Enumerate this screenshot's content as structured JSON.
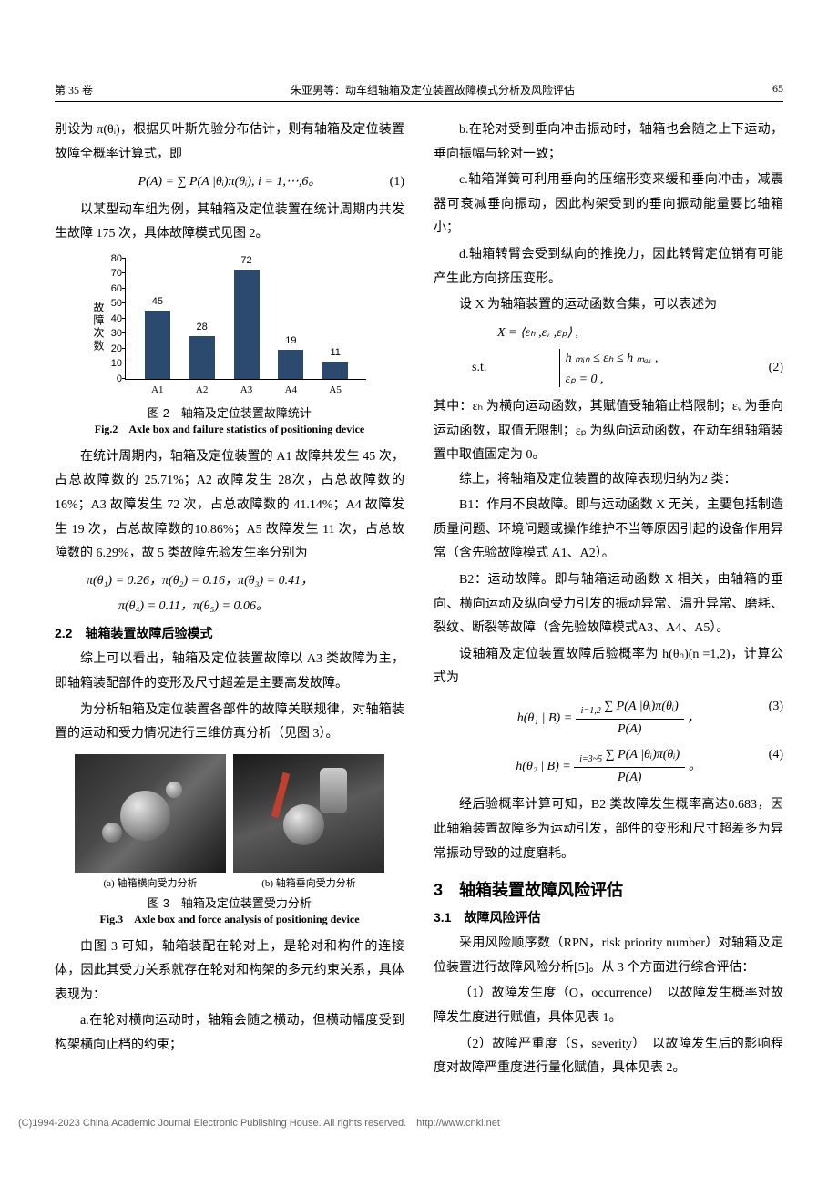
{
  "header": {
    "volume": "第 35 卷",
    "title": "朱亚男等：动车组轴箱及定位装置故障模式分析及风险评估",
    "page": "65"
  },
  "left_col": {
    "p1": "别设为 π(θᵢ)，根据贝叶斯先验分布估计，则有轴箱及定位装置故障全概率计算式，即",
    "eq1": "P(A) = ∑ P(A |θᵢ)π(θᵢ), i = 1,⋯,6。",
    "eq1_num": "(1)",
    "p2": "以某型动车组为例，其轴箱及定位装置在统计周期内共发生故障 175 次，具体故障模式见图 2。",
    "chart": {
      "categories": [
        "A1",
        "A2",
        "A3",
        "A4",
        "A5"
      ],
      "values": [
        45,
        28,
        72,
        19,
        11
      ],
      "bar_color": "#2b4a6e",
      "ylim_max": 80,
      "ytick_step": 10,
      "y_axis_label": "故障次数"
    },
    "fig2_cn": "图 2　轴箱及定位装置故障统计",
    "fig2_en": "Fig.2　Axle box and failure statistics of positioning device",
    "p3": "在统计周期内，轴箱及定位装置的 A1 故障共发生 45 次，占总故障数的 25.71%；A2 故障发生 28次，占总故障数的 16%；A3 故障发生 72 次，占总故障数的 41.14%；A4 故障发生 19 次，占总故障数的10.86%；A5 故障发生 11 次，占总故障数的 6.29%，故 5 类故障先验发生率分别为",
    "eq_prior1": "π(θ₁) = 0.26，π(θ₂) = 0.16，π(θ₃) = 0.41，",
    "eq_prior2": "π(θ₄) = 0.11，π(θ₅) = 0.06。",
    "sub22": "2.2　轴箱装置故障后验模式",
    "p4": "综上可以看出，轴箱及定位装置故障以 A3 类故障为主，即轴箱装配部件的变形及尺寸超差是主要高发故障。",
    "p5": "为分析轴箱及定位装置各部件的故障关联规律，对轴箱装置的运动和受力情况进行三维仿真分析（见图 3）。",
    "fig3_sub_a": "(a) 轴箱横向受力分析",
    "fig3_sub_b": "(b) 轴箱垂向受力分析",
    "fig3_cn": "图 3　轴箱及定位装置受力分析",
    "fig3_en": "Fig.3　Axle box and force analysis of positioning device",
    "p6": "由图 3 可知，轴箱装配在轮对上，是轮对和构件的连接体，因此其受力关系就存在轮对和构架的多元约束关系，具体表现为：",
    "p7": "a.在轮对横向运动时，轴箱会随之横动，但横动幅度受到构架横向止档的约束；"
  },
  "right_col": {
    "p_b": "b.在轮对受到垂向冲击振动时，轴箱也会随之上下运动，垂向振幅与轮对一致；",
    "p_c": "c.轴箱弹簧可利用垂向的压缩形变来缓和垂向冲击，减震器可衰减垂向振动，因此构架受到的垂向振动能量要比轴箱小；",
    "p_d": "d.轴箱转臂会受到纵向的推挽力，因此转臂定位销有可能产生此方向挤压变形。",
    "p_x": "设 X 为轴箱装置的运动函数合集，可以表述为",
    "eq2_l1": "X = ⟨εₕ ,εᵥ ,εₚ⟩ ,",
    "eq2_l2_pre": "s.t.",
    "eq2_l2a": "h ₘᵢₙ ≤ εₕ ≤ h ₘₐₓ ,",
    "eq2_l2b": "εₚ = 0 ,",
    "eq2_num": "(2)",
    "p_where": "其中：εₕ 为横向运动函数，其赋值受轴箱止档限制；εᵥ 为垂向运动函数，取值无限制；εₚ 为纵向运动函数，在动车组轴箱装置中取值固定为 0。",
    "p_sum": "综上，将轴箱及定位装置的故障表现归纳为2 类：",
    "p_b1": "B1：作用不良故障。即与运动函数 X 无关，主要包括制造质量问题、环境问题或操作维护不当等原因引起的设备作用异常（含先验故障模式 A1、A2）。",
    "p_b2": "B2：运动故障。即与轴箱运动函数 X 相关，由轴箱的垂向、横向运动及纵向受力引发的振动异常、温升异常、磨耗、裂纹、断裂等故障（含先验故障模式A3、A4、A5）。",
    "p_post": "设轴箱及定位装置故障后验概率为 h(θₙ)(n =1,2)，计算公式为",
    "eq3_lhs": "h(θ₁ | B) =",
    "eq3_num_top": "∑ P(A |θᵢ)π(θᵢ)",
    "eq3_num_sub": "i=1,2",
    "eq3_den": "P(A)",
    "eq3_comma": "，",
    "eq3_num": "(3)",
    "eq4_lhs": "h(θ₂ | B) =",
    "eq4_num_top": "∑ P(A |θᵢ)π(θᵢ)",
    "eq4_num_sub": "i=3~5",
    "eq4_den": "P(A)",
    "eq4_period": "。",
    "eq4_num": "(4)",
    "p_result": "经后验概率计算可知，B2 类故障发生概率高达0.683，因此轴箱装置故障多为运动引发，部件的变形和尺寸超差多为异常振动导致的过度磨耗。",
    "sec3": "3　轴箱装置故障风险评估",
    "sub31": "3.1　故障风险评估",
    "p_rpn": "采用风险顺序数（RPN，risk priority number）对轴箱及定位装置进行故障风险分析[5]。从 3 个方面进行综合评估：",
    "p_o": "（1）故障发生度（O，occurrence）　以故障发生概率对故障发生度进行赋值，具体见表 1。",
    "p_s": "（2）故障严重度（S，severity）　以故障发生后的影响程度对故障严重度进行量化赋值，具体见表 2。"
  },
  "footer": "(C)1994-2023 China Academic Journal Electronic Publishing House. All rights reserved.　http://www.cnki.net"
}
